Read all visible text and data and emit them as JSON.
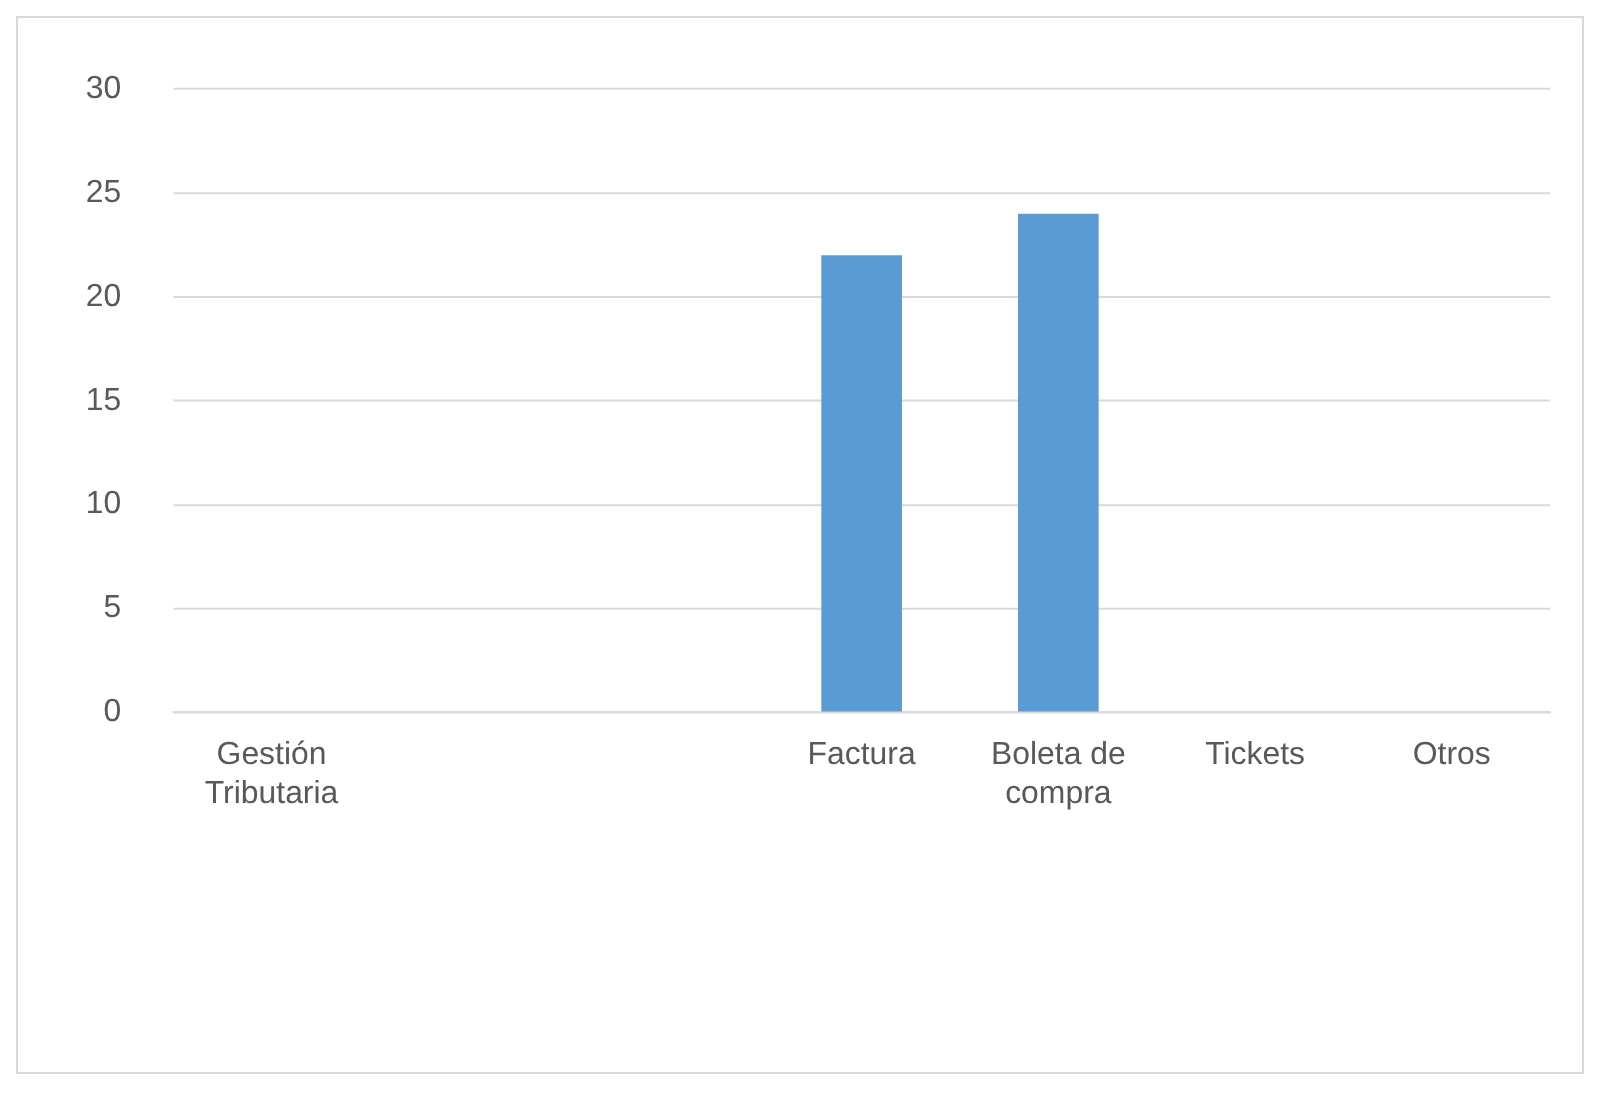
{
  "chart_data": {
    "type": "bar",
    "categories": [
      "Gestión Tributaria",
      null,
      null,
      "Factura",
      "Boleta de compra",
      "Tickets",
      "Otros"
    ],
    "values": [
      0,
      0,
      0,
      22,
      24,
      0,
      0
    ],
    "color": "#5b9bd5",
    "ylim": [
      0,
      30
    ],
    "yticks": [
      0,
      5,
      10,
      15,
      20,
      25,
      30
    ],
    "grid": "y",
    "legend": false
  }
}
